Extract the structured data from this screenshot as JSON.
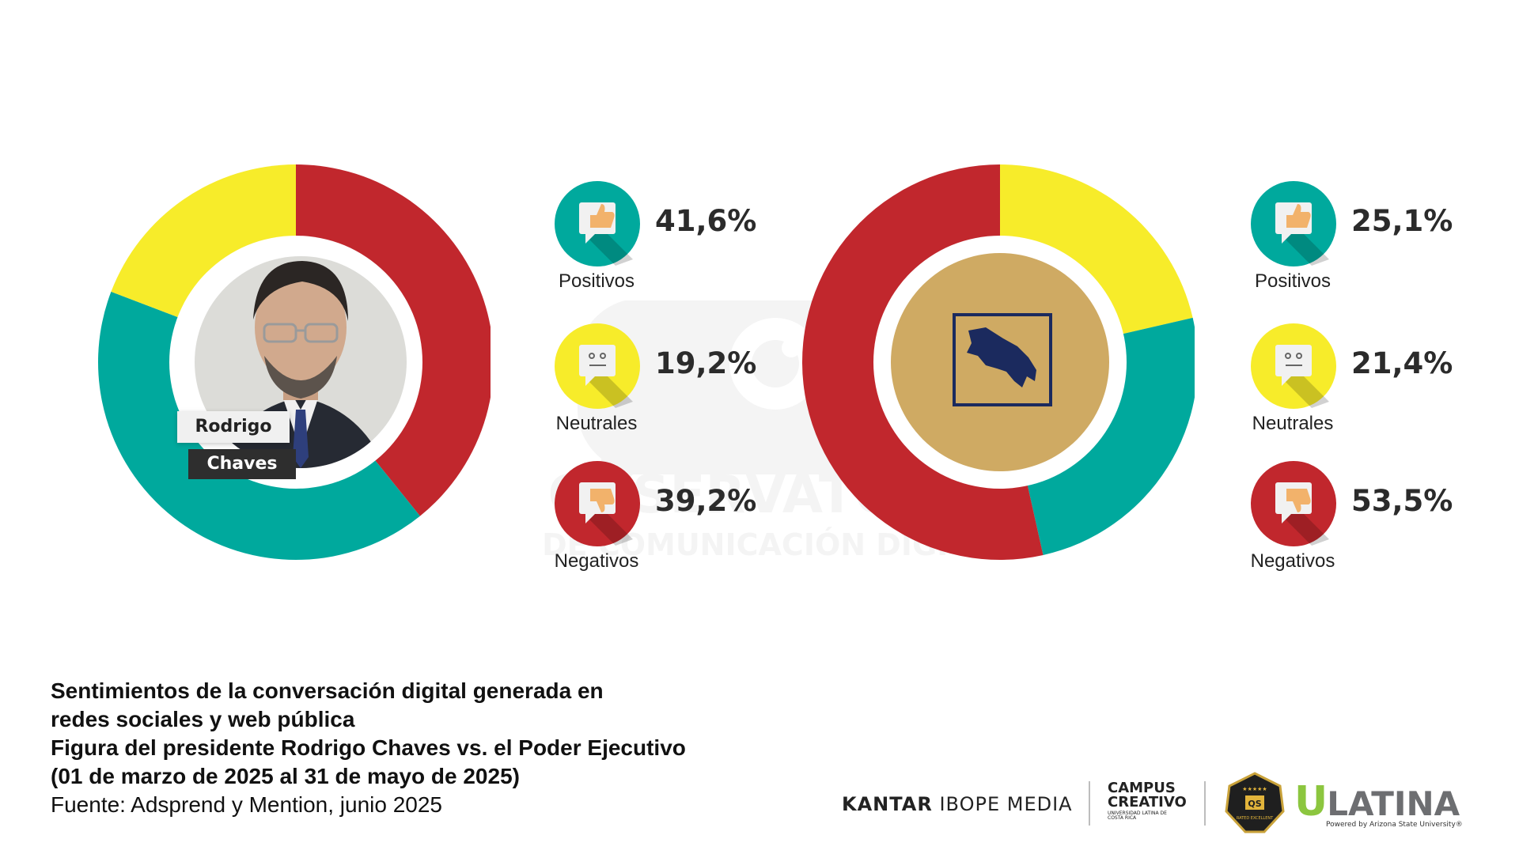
{
  "caption": {
    "line1": "Sentimientos de la conversación digital generada en",
    "line2": "redes sociales y web pública",
    "line3": "Figura del presidente Rodrigo Chaves vs. el Poder Ejecutivo",
    "line4": "(01 de marzo de 2025 al 31 de mayo de 2025)",
    "source": "Fuente: Adsprend y Mention, junio 2025"
  },
  "person": {
    "first_name": "Rodrigo",
    "last_name": "Chaves"
  },
  "watermark": {
    "line1": "OBSERVATORIO",
    "line2": "DE COMUNICACIÓN DIGITAL"
  },
  "logos": {
    "kantar_bold": "KANTAR",
    "kantar_rest": "IBOPE MEDIA",
    "campus_line1": "CAMPUS",
    "campus_line2": "CREATIVO",
    "campus_sub": "UNIVERSIDAD LATINA DE COSTA RICA",
    "badge_text": "QS",
    "badge_sub": "RATED EXCELLENT",
    "ulatina_u": "U",
    "ulatina_rest": "LATINA",
    "ulatina_powered": "Powered by Arizona State University®"
  },
  "colors": {
    "positive": "#00A99D",
    "neutral": "#F7EC2A",
    "negative": "#C1272D",
    "seal_bg": "#CFAA63",
    "seal_map": "#1B2A5E"
  },
  "chart_data": [
    {
      "type": "pie",
      "variant": "donut",
      "categories": [
        "Positivos",
        "Neutrales",
        "Negativos"
      ],
      "values": [
        41.6,
        19.2,
        39.2
      ],
      "value_labels": [
        "41,6%",
        "19,2%",
        "39,2%"
      ],
      "units": "%",
      "center": "portrait",
      "order_clockwise_from_top": [
        "Negativos",
        "Positivos",
        "Neutrales"
      ]
    },
    {
      "type": "pie",
      "variant": "donut",
      "categories": [
        "Positivos",
        "Neutrales",
        "Negativos"
      ],
      "values": [
        25.1,
        21.4,
        53.5
      ],
      "value_labels": [
        "25,1%",
        "21,4%",
        "53,5%"
      ],
      "units": "%",
      "center": "government-seal",
      "order_clockwise_from_top": [
        "Neutrales",
        "Positivos",
        "Negativos"
      ]
    }
  ]
}
